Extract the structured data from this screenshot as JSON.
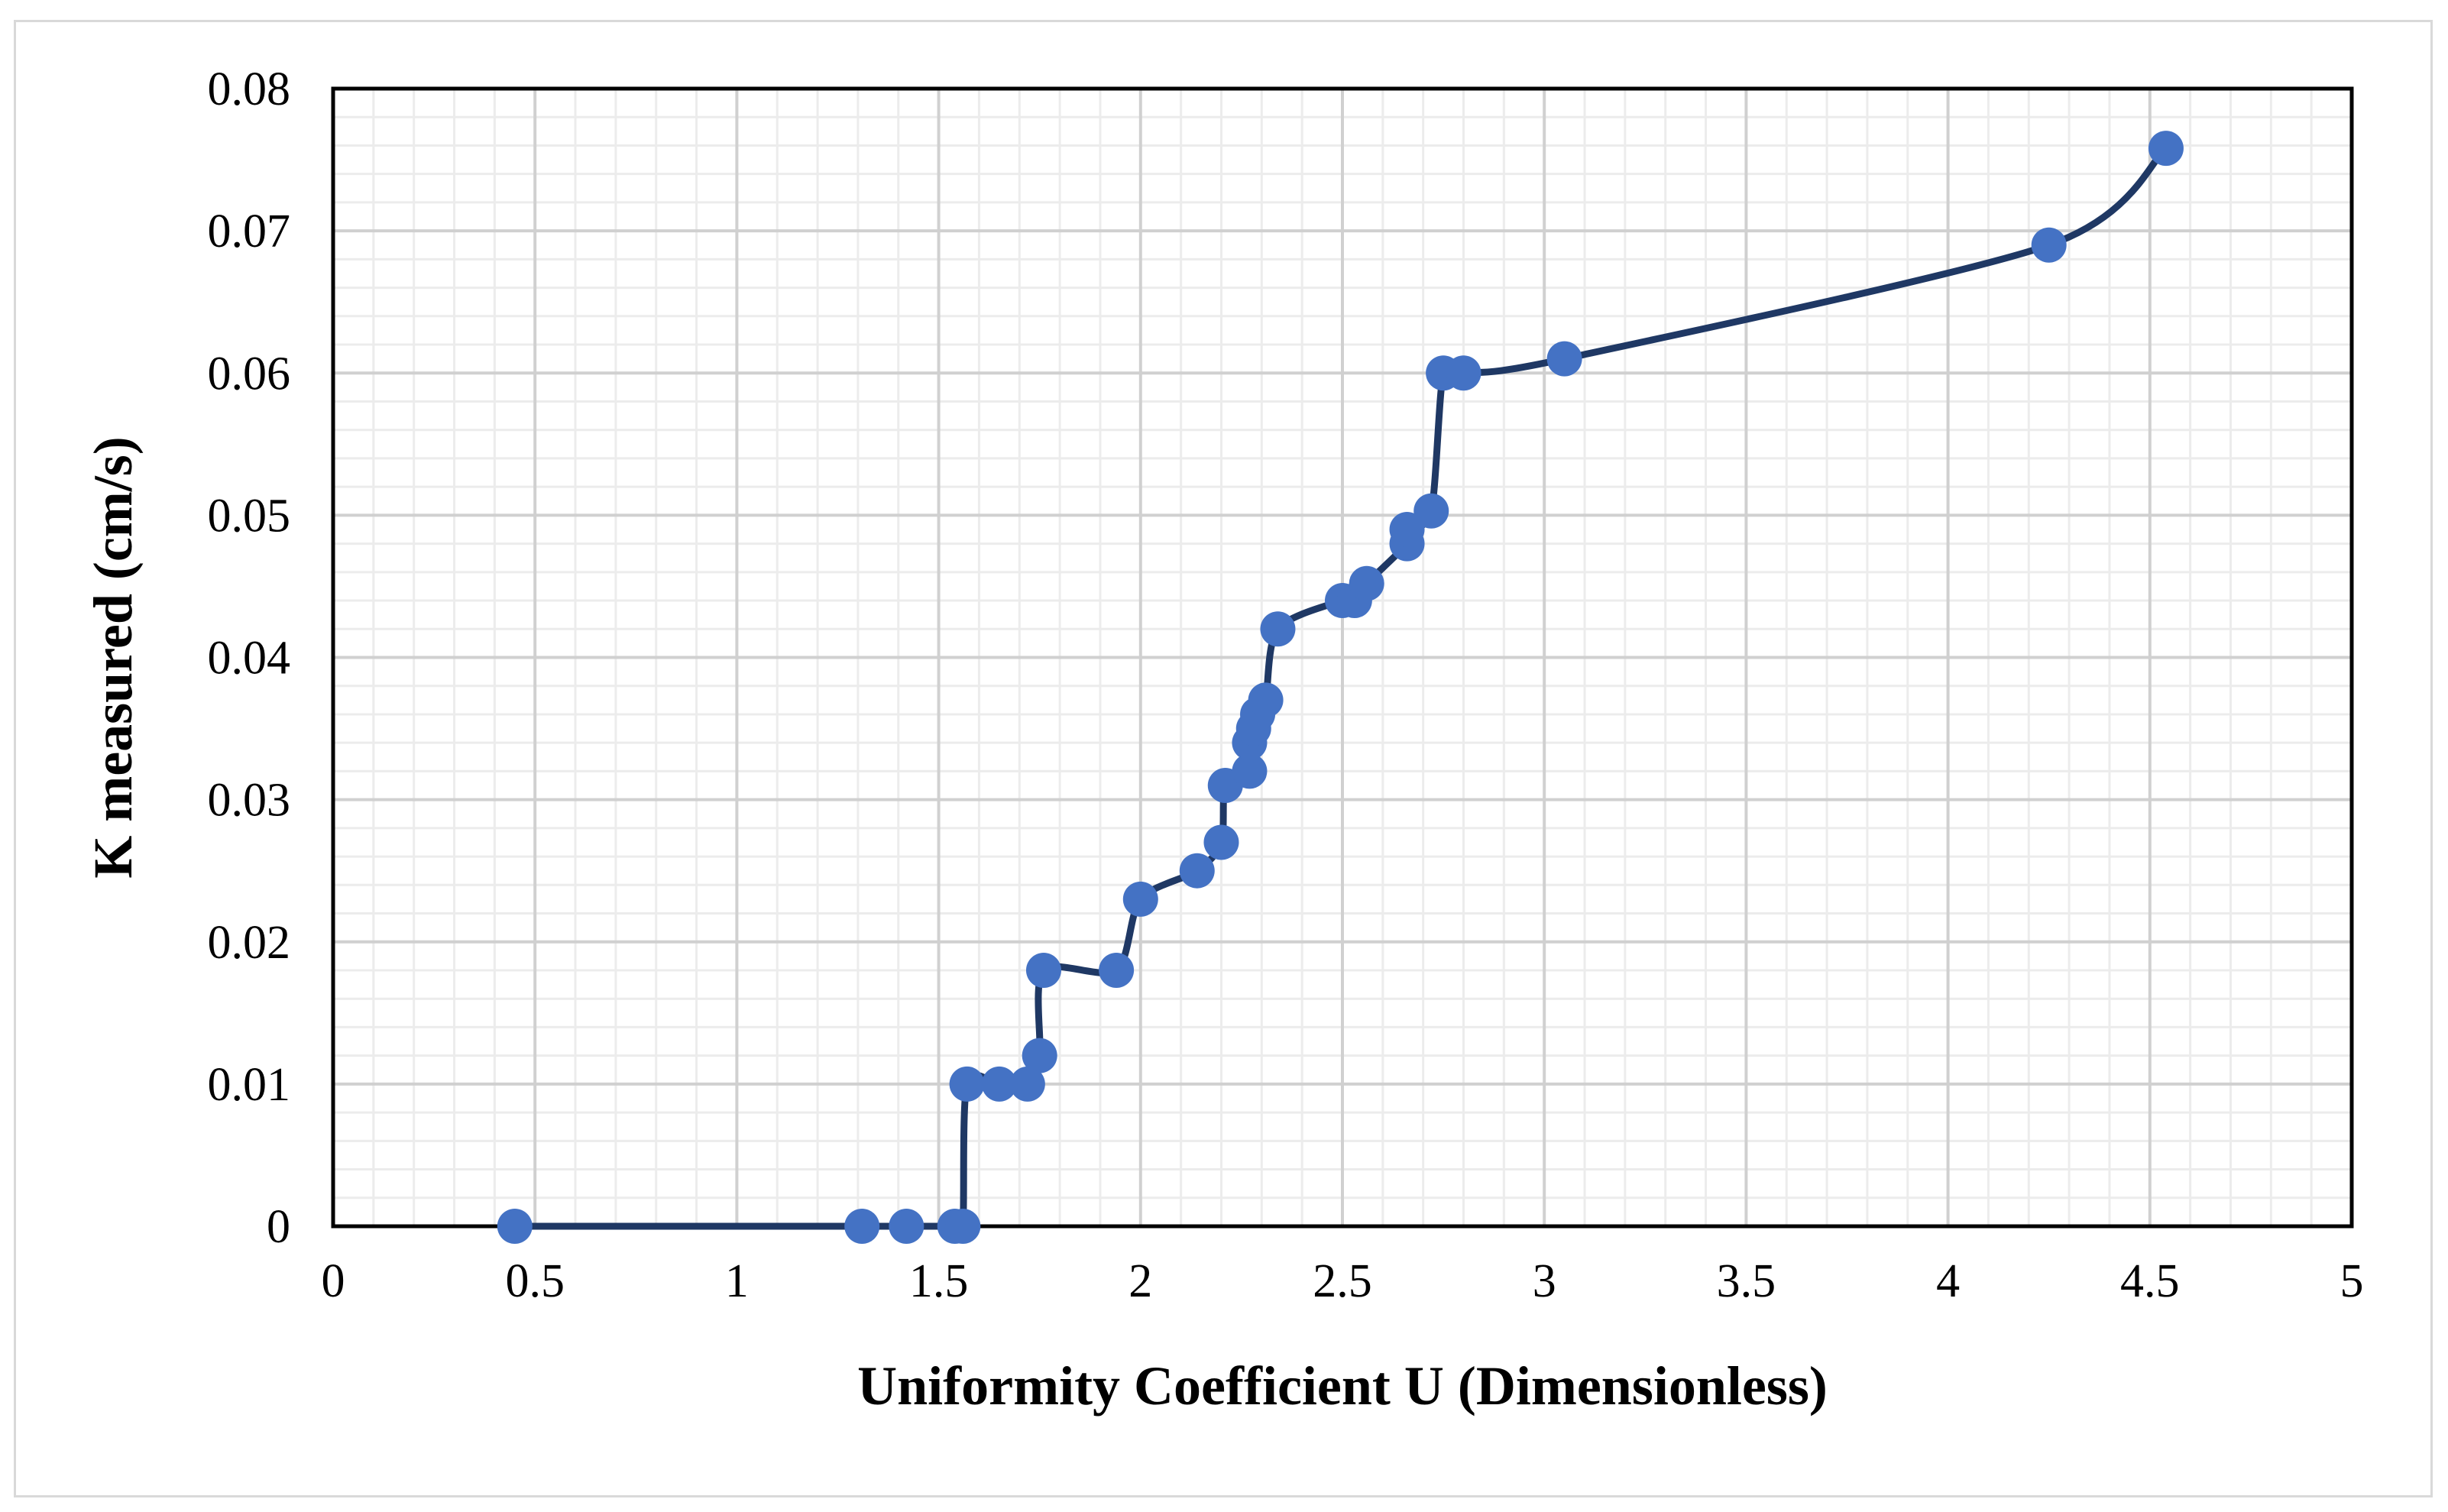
{
  "chart_data": {
    "type": "line",
    "title": "",
    "xlabel": "Uniformity Coefficient U (Dimensionless)",
    "ylabel": "K measured (cm/s)",
    "xlim": [
      0,
      5
    ],
    "ylim": [
      0,
      0.08
    ],
    "x_ticks": [
      "0",
      "0.5",
      "1",
      "1.5",
      "2",
      "2.5",
      "3",
      "3.5",
      "4",
      "4.5",
      "5"
    ],
    "y_ticks": [
      "0",
      "0.01",
      "0.02",
      "0.03",
      "0.04",
      "0.05",
      "0.06",
      "0.07",
      "0.08"
    ],
    "grid": true,
    "legend": "none",
    "series": [
      {
        "marker_color": "#4472c4",
        "line_color": "#1f3864",
        "smooth": true,
        "points": [
          {
            "x": 0.45,
            "y": 0.0
          },
          {
            "x": 1.31,
            "y": 0.0
          },
          {
            "x": 1.42,
            "y": 0.0
          },
          {
            "x": 1.54,
            "y": 0.0
          },
          {
            "x": 1.56,
            "y": 0.0
          },
          {
            "x": 1.57,
            "y": 0.01
          },
          {
            "x": 1.65,
            "y": 0.01
          },
          {
            "x": 1.72,
            "y": 0.01
          },
          {
            "x": 1.75,
            "y": 0.012
          },
          {
            "x": 1.76,
            "y": 0.018
          },
          {
            "x": 1.94,
            "y": 0.018
          },
          {
            "x": 2.0,
            "y": 0.023
          },
          {
            "x": 2.14,
            "y": 0.025
          },
          {
            "x": 2.2,
            "y": 0.027
          },
          {
            "x": 2.21,
            "y": 0.031
          },
          {
            "x": 2.27,
            "y": 0.032
          },
          {
            "x": 2.27,
            "y": 0.034
          },
          {
            "x": 2.28,
            "y": 0.035
          },
          {
            "x": 2.29,
            "y": 0.036
          },
          {
            "x": 2.31,
            "y": 0.037
          },
          {
            "x": 2.34,
            "y": 0.042
          },
          {
            "x": 2.5,
            "y": 0.044
          },
          {
            "x": 2.53,
            "y": 0.044
          },
          {
            "x": 2.56,
            "y": 0.0452
          },
          {
            "x": 2.66,
            "y": 0.048
          },
          {
            "x": 2.66,
            "y": 0.049
          },
          {
            "x": 2.72,
            "y": 0.0503
          },
          {
            "x": 2.75,
            "y": 0.06
          },
          {
            "x": 2.8,
            "y": 0.06
          },
          {
            "x": 3.05,
            "y": 0.061
          },
          {
            "x": 4.25,
            "y": 0.069
          },
          {
            "x": 4.54,
            "y": 0.0758
          }
        ]
      }
    ]
  }
}
